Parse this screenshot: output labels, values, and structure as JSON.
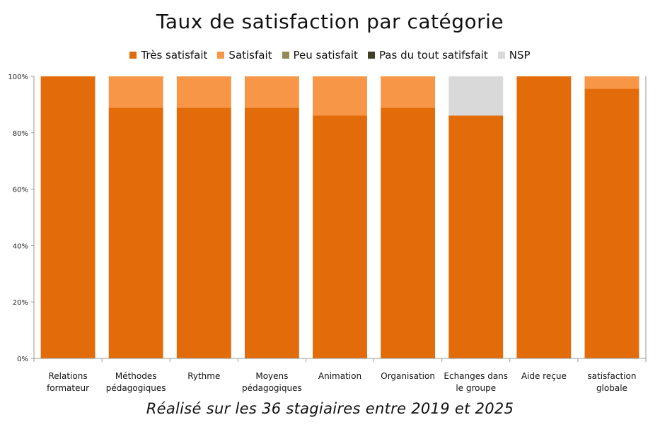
{
  "chart_data": {
    "type": "bar",
    "stacked": true,
    "percent_stacked": true,
    "title": "Taux de satisfaction par catégorie",
    "subtitle": "Réalisé sur les 36 stagiaires entre 2019 et 2025",
    "categories": [
      [
        "Relations",
        "formateur"
      ],
      [
        "Méthodes",
        "pédagogiques"
      ],
      [
        "Rythme"
      ],
      [
        "Moyens",
        "pédagogiques"
      ],
      [
        "Animation"
      ],
      [
        "Organisation"
      ],
      [
        "Echanges dans",
        "le groupe"
      ],
      [
        "Aide reçue"
      ],
      [
        "satisfaction",
        "globale"
      ]
    ],
    "series": [
      {
        "name": "Très satisfait",
        "color": "#e36c0a",
        "values": [
          100,
          88.9,
          88.9,
          88.9,
          86.1,
          88.9,
          86.1,
          100,
          95.6
        ]
      },
      {
        "name": "Satisfait",
        "color": "#f79646",
        "values": [
          0,
          11.1,
          11.1,
          11.1,
          13.9,
          11.1,
          0,
          0,
          4.4
        ]
      },
      {
        "name": "Peu satisfait",
        "color": "#948a54",
        "values": [
          0,
          0,
          0,
          0,
          0,
          0,
          0,
          0,
          0
        ]
      },
      {
        "name": "Pas du tout satifsfait",
        "color": "#3f3f26",
        "values": [
          0,
          0,
          0,
          0,
          0,
          0,
          0,
          0,
          0
        ]
      },
      {
        "name": "NSP",
        "color": "#d9d9d9",
        "values": [
          0,
          0,
          0,
          0,
          0,
          0,
          13.9,
          0,
          0
        ]
      }
    ],
    "ylim": [
      0,
      100
    ],
    "yticks": [
      "0%",
      "20%",
      "40%",
      "60%",
      "80%",
      "100%"
    ],
    "legend_position": "top",
    "grid": false
  }
}
